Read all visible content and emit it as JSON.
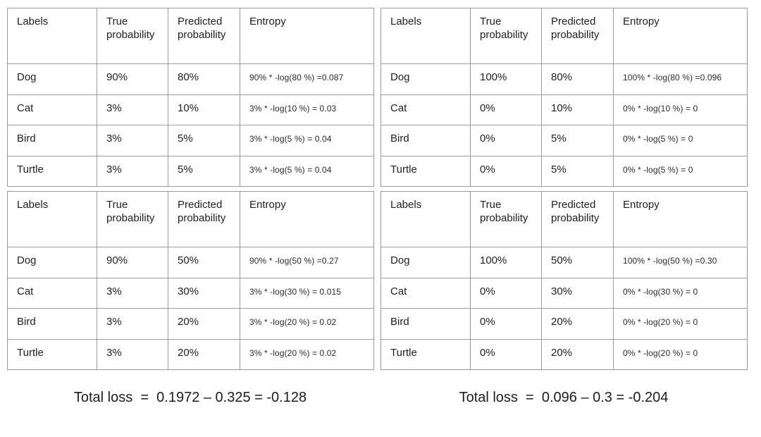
{
  "page": {
    "background_color": "#ffffff",
    "text_color": "#212121",
    "border_color": "#9b9b9b"
  },
  "columns": [
    "Labels",
    "True probability",
    "Predicted probability",
    "Entropy"
  ],
  "tables": {
    "top_left": {
      "rows": [
        {
          "label": "Dog",
          "true_prob": "90%",
          "pred_prob": "80%",
          "entropy": "90% * -log(80 %) =0.087"
        },
        {
          "label": "Cat",
          "true_prob": "3%",
          "pred_prob": "10%",
          "entropy": "3% * -log(10 %) = 0.03"
        },
        {
          "label": "Bird",
          "true_prob": "3%",
          "pred_prob": "5%",
          "entropy": "3% * -log(5 %) = 0.04"
        },
        {
          "label": "Turtle",
          "true_prob": "3%",
          "pred_prob": "5%",
          "entropy": "3% * -log(5 %) = 0.04"
        }
      ]
    },
    "top_right": {
      "rows": [
        {
          "label": "Dog",
          "true_prob": "100%",
          "pred_prob": "80%",
          "entropy": "100% * -log(80 %) =0.096"
        },
        {
          "label": "Cat",
          "true_prob": "0%",
          "pred_prob": "10%",
          "entropy": "0% * -log(10 %) = 0"
        },
        {
          "label": "Bird",
          "true_prob": "0%",
          "pred_prob": "5%",
          "entropy": "0% * -log(5 %) = 0"
        },
        {
          "label": "Turtle",
          "true_prob": "0%",
          "pred_prob": "5%",
          "entropy": "0% * -log(5 %) = 0"
        }
      ]
    },
    "bottom_left": {
      "rows": [
        {
          "label": "Dog",
          "true_prob": "90%",
          "pred_prob": "50%",
          "entropy": "90% * -log(50 %) =0.27"
        },
        {
          "label": "Cat",
          "true_prob": "3%",
          "pred_prob": "30%",
          "entropy": "3% * -log(30 %) = 0.015"
        },
        {
          "label": "Bird",
          "true_prob": "3%",
          "pred_prob": "20%",
          "entropy": "3% * -log(20 %) = 0.02"
        },
        {
          "label": "Turtle",
          "true_prob": "3%",
          "pred_prob": "20%",
          "entropy": "3% * -log(20 %) = 0.02"
        }
      ]
    },
    "bottom_right": {
      "rows": [
        {
          "label": "Dog",
          "true_prob": "100%",
          "pred_prob": "50%",
          "entropy": "100% * -log(50 %) =0.30"
        },
        {
          "label": "Cat",
          "true_prob": "0%",
          "pred_prob": "30%",
          "entropy": "0% * -log(30 %) = 0"
        },
        {
          "label": "Bird",
          "true_prob": "0%",
          "pred_prob": "20%",
          "entropy": "0% * -log(20 %) = 0"
        },
        {
          "label": "Turtle",
          "true_prob": "0%",
          "pred_prob": "20%",
          "entropy": "0% * -log(20 %) = 0"
        }
      ]
    }
  },
  "totals": {
    "left": "Total loss  =  0.1972 – 0.325 = -0.128",
    "right": "Total loss  =  0.096 – 0.3 = -0.204"
  }
}
